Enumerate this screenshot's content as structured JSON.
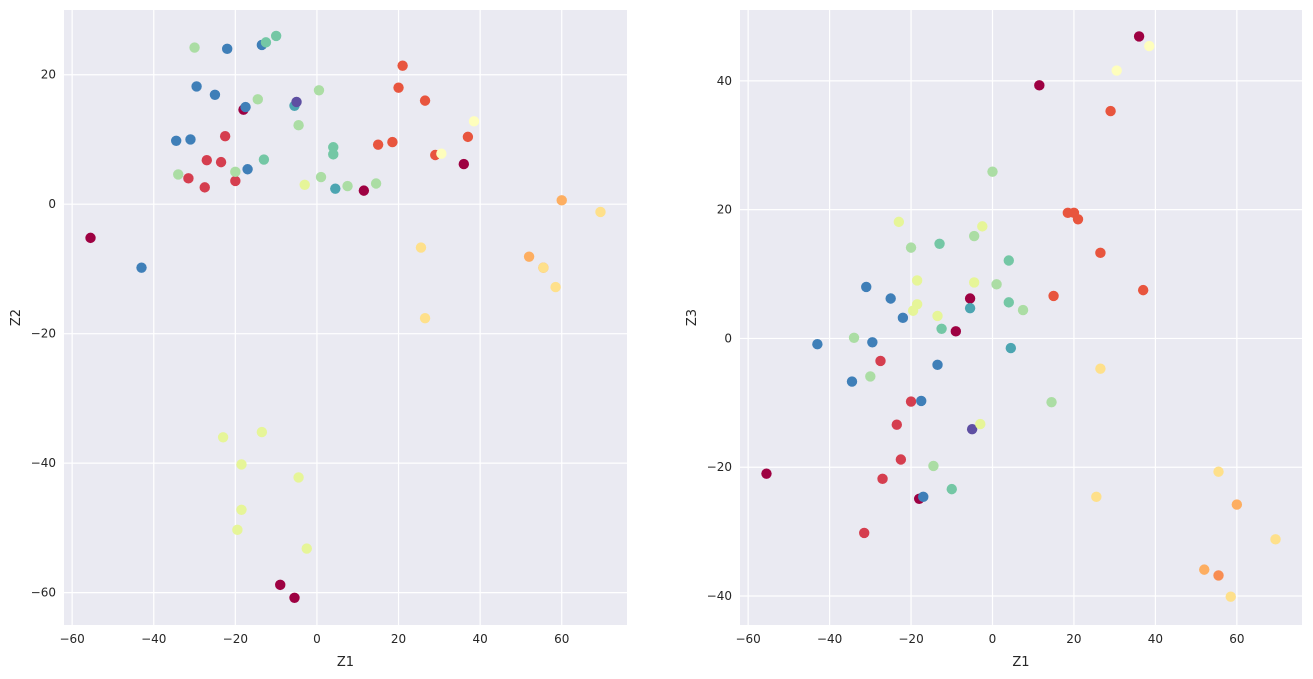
{
  "chart_data": [
    {
      "type": "scatter",
      "xlabel": "Z1",
      "ylabel": "Z2",
      "xlim": [
        -62,
        76
      ],
      "ylim": [
        -65,
        30
      ],
      "xticks": [
        -60,
        -40,
        -20,
        0,
        20,
        40,
        60
      ],
      "yticks": [
        -60,
        -40,
        -20,
        0,
        20
      ],
      "grid": true,
      "points": [
        {
          "x": -55.5,
          "y": -5.2,
          "color": "#9e0142"
        },
        {
          "x": -43.0,
          "y": -9.8,
          "color": "#3f7fb8"
        },
        {
          "x": -34.5,
          "y": 9.8,
          "color": "#3f7fb8"
        },
        {
          "x": -34.0,
          "y": 4.6,
          "color": "#abdda4"
        },
        {
          "x": -31.5,
          "y": 4.0,
          "color": "#d53e4f"
        },
        {
          "x": -31.0,
          "y": 10.0,
          "color": "#3f7fb8"
        },
        {
          "x": -30.0,
          "y": 24.2,
          "color": "#abdda4"
        },
        {
          "x": -29.5,
          "y": 18.2,
          "color": "#3f7fb8"
        },
        {
          "x": -27.5,
          "y": 2.6,
          "color": "#d53e4f"
        },
        {
          "x": -27.0,
          "y": 6.8,
          "color": "#d53e4f"
        },
        {
          "x": -25.0,
          "y": 16.9,
          "color": "#3f7fb8"
        },
        {
          "x": -23.5,
          "y": 6.5,
          "color": "#d53e4f"
        },
        {
          "x": -23.0,
          "y": -36.0,
          "color": "#e6f598"
        },
        {
          "x": -22.5,
          "y": 10.5,
          "color": "#d53e4f"
        },
        {
          "x": -22.0,
          "y": 24.0,
          "color": "#3f7fb8"
        },
        {
          "x": -20.0,
          "y": 3.6,
          "color": "#d53e4f"
        },
        {
          "x": -20.0,
          "y": 5.0,
          "color": "#abdda4"
        },
        {
          "x": -19.5,
          "y": -50.3,
          "color": "#e6f598"
        },
        {
          "x": -18.5,
          "y": -40.2,
          "color": "#e6f598"
        },
        {
          "x": -18.5,
          "y": -47.2,
          "color": "#e6f598"
        },
        {
          "x": -18.0,
          "y": 14.6,
          "color": "#9e0142"
        },
        {
          "x": -17.5,
          "y": 15.0,
          "color": "#3f7fb8"
        },
        {
          "x": -17.0,
          "y": 5.4,
          "color": "#3f7fb8"
        },
        {
          "x": -14.5,
          "y": 16.2,
          "color": "#abdda4"
        },
        {
          "x": -13.5,
          "y": 24.6,
          "color": "#3f7fb8"
        },
        {
          "x": -13.5,
          "y": -35.2,
          "color": "#e6f598"
        },
        {
          "x": -13.0,
          "y": 6.9,
          "color": "#74c7a5"
        },
        {
          "x": -12.5,
          "y": 25.0,
          "color": "#74c7a5"
        },
        {
          "x": -10.0,
          "y": 26.0,
          "color": "#74c7a5"
        },
        {
          "x": -9.0,
          "y": -58.8,
          "color": "#9e0142"
        },
        {
          "x": -5.5,
          "y": -60.8,
          "color": "#9e0142"
        },
        {
          "x": -5.5,
          "y": 15.2,
          "color": "#4ca5b1"
        },
        {
          "x": -5.0,
          "y": 15.8,
          "color": "#5e4fa2"
        },
        {
          "x": -4.5,
          "y": 12.2,
          "color": "#abdda4"
        },
        {
          "x": -4.5,
          "y": -42.2,
          "color": "#e6f598"
        },
        {
          "x": -3.0,
          "y": 3.0,
          "color": "#e6f598"
        },
        {
          "x": -2.5,
          "y": -53.2,
          "color": "#e6f598"
        },
        {
          "x": 0.5,
          "y": 17.6,
          "color": "#abdda4"
        },
        {
          "x": 1.0,
          "y": 4.2,
          "color": "#abdda4"
        },
        {
          "x": 4.0,
          "y": 8.8,
          "color": "#74c7a5"
        },
        {
          "x": 4.0,
          "y": 7.7,
          "color": "#74c7a5"
        },
        {
          "x": 4.5,
          "y": 2.4,
          "color": "#4ca5b1"
        },
        {
          "x": 7.5,
          "y": 2.8,
          "color": "#abdda4"
        },
        {
          "x": 11.5,
          "y": 2.1,
          "color": "#9e0142"
        },
        {
          "x": 14.5,
          "y": 3.2,
          "color": "#abdda4"
        },
        {
          "x": 15.0,
          "y": 9.2,
          "color": "#e8553e"
        },
        {
          "x": 18.5,
          "y": 9.6,
          "color": "#e8553e"
        },
        {
          "x": 20.0,
          "y": 18.0,
          "color": "#e8553e"
        },
        {
          "x": 21.0,
          "y": 21.4,
          "color": "#e8553e"
        },
        {
          "x": 25.5,
          "y": -6.7,
          "color": "#fee08b"
        },
        {
          "x": 26.5,
          "y": 16.0,
          "color": "#e8553e"
        },
        {
          "x": 26.5,
          "y": -17.6,
          "color": "#fee08b"
        },
        {
          "x": 29.0,
          "y": 7.6,
          "color": "#e8553e"
        },
        {
          "x": 30.5,
          "y": 7.8,
          "color": "#fefebd"
        },
        {
          "x": 36.0,
          "y": 6.2,
          "color": "#9e0142"
        },
        {
          "x": 37.0,
          "y": 10.4,
          "color": "#e8553e"
        },
        {
          "x": 38.5,
          "y": 12.8,
          "color": "#fefebd"
        },
        {
          "x": 52.0,
          "y": -8.1,
          "color": "#fdae61"
        },
        {
          "x": 55.5,
          "y": -9.8,
          "color": "#f88d52"
        },
        {
          "x": 55.5,
          "y": -9.8,
          "color": "#fee08b"
        },
        {
          "x": 58.5,
          "y": -12.8,
          "color": "#fee08b"
        },
        {
          "x": 60.0,
          "y": 0.6,
          "color": "#fdae61"
        },
        {
          "x": 69.5,
          "y": -1.2,
          "color": "#fee08b"
        }
      ]
    },
    {
      "type": "scatter",
      "xlabel": "Z1",
      "ylabel": "Z3",
      "xlim": [
        -62,
        76
      ],
      "ylim": [
        -44.5,
        51
      ],
      "xticks": [
        -60,
        -40,
        -20,
        0,
        20,
        40,
        60
      ],
      "yticks": [
        -40,
        -20,
        0,
        20,
        40
      ],
      "grid": true,
      "points": [
        {
          "x": -55.5,
          "y": -21.0,
          "color": "#9e0142"
        },
        {
          "x": -43.0,
          "y": -0.9,
          "color": "#3f7fb8"
        },
        {
          "x": -34.5,
          "y": -6.7,
          "color": "#3f7fb8"
        },
        {
          "x": -34.0,
          "y": 0.1,
          "color": "#abdda4"
        },
        {
          "x": -31.5,
          "y": -30.2,
          "color": "#d53e4f"
        },
        {
          "x": -31.0,
          "y": 8.0,
          "color": "#3f7fb8"
        },
        {
          "x": -30.0,
          "y": -5.9,
          "color": "#abdda4"
        },
        {
          "x": -29.5,
          "y": -0.6,
          "color": "#3f7fb8"
        },
        {
          "x": -27.5,
          "y": -3.5,
          "color": "#d53e4f"
        },
        {
          "x": -27.0,
          "y": -21.8,
          "color": "#d53e4f"
        },
        {
          "x": -25.0,
          "y": 6.2,
          "color": "#3f7fb8"
        },
        {
          "x": -23.5,
          "y": -13.4,
          "color": "#d53e4f"
        },
        {
          "x": -23.0,
          "y": 18.1,
          "color": "#e6f598"
        },
        {
          "x": -22.5,
          "y": -18.8,
          "color": "#d53e4f"
        },
        {
          "x": -22.0,
          "y": 3.2,
          "color": "#3f7fb8"
        },
        {
          "x": -20.0,
          "y": -9.8,
          "color": "#d53e4f"
        },
        {
          "x": -20.0,
          "y": 14.1,
          "color": "#abdda4"
        },
        {
          "x": -19.5,
          "y": 4.3,
          "color": "#e6f598"
        },
        {
          "x": -18.5,
          "y": 9.0,
          "color": "#e6f598"
        },
        {
          "x": -18.5,
          "y": 5.3,
          "color": "#e6f598"
        },
        {
          "x": -18.0,
          "y": -24.9,
          "color": "#9e0142"
        },
        {
          "x": -17.5,
          "y": -9.7,
          "color": "#3f7fb8"
        },
        {
          "x": -17.0,
          "y": -24.6,
          "color": "#3f7fb8"
        },
        {
          "x": -14.5,
          "y": -19.8,
          "color": "#abdda4"
        },
        {
          "x": -13.5,
          "y": -4.1,
          "color": "#3f7fb8"
        },
        {
          "x": -13.5,
          "y": 3.5,
          "color": "#e6f598"
        },
        {
          "x": -13.0,
          "y": 14.7,
          "color": "#74c7a5"
        },
        {
          "x": -12.5,
          "y": 1.5,
          "color": "#74c7a5"
        },
        {
          "x": -10.0,
          "y": -23.4,
          "color": "#74c7a5"
        },
        {
          "x": -9.0,
          "y": 1.1,
          "color": "#9e0142"
        },
        {
          "x": -5.5,
          "y": 6.2,
          "color": "#9e0142"
        },
        {
          "x": -5.5,
          "y": 4.7,
          "color": "#4ca5b1"
        },
        {
          "x": -5.0,
          "y": -14.1,
          "color": "#5e4fa2"
        },
        {
          "x": -4.5,
          "y": 15.9,
          "color": "#abdda4"
        },
        {
          "x": -4.5,
          "y": 8.7,
          "color": "#e6f598"
        },
        {
          "x": -3.0,
          "y": -13.3,
          "color": "#e6f598"
        },
        {
          "x": -2.5,
          "y": 17.4,
          "color": "#e6f598"
        },
        {
          "x": 0.0,
          "y": 25.9,
          "color": "#abdda4"
        },
        {
          "x": 1.0,
          "y": 8.4,
          "color": "#abdda4"
        },
        {
          "x": 4.0,
          "y": 12.1,
          "color": "#74c7a5"
        },
        {
          "x": 4.0,
          "y": 5.6,
          "color": "#74c7a5"
        },
        {
          "x": 4.5,
          "y": -1.5,
          "color": "#4ca5b1"
        },
        {
          "x": 7.5,
          "y": 4.4,
          "color": "#abdda4"
        },
        {
          "x": 11.5,
          "y": 39.3,
          "color": "#9e0142"
        },
        {
          "x": 14.5,
          "y": -9.9,
          "color": "#abdda4"
        },
        {
          "x": 15.0,
          "y": 6.6,
          "color": "#e8553e"
        },
        {
          "x": 18.5,
          "y": 19.5,
          "color": "#e8553e"
        },
        {
          "x": 20.0,
          "y": 19.5,
          "color": "#e8553e"
        },
        {
          "x": 21.0,
          "y": 18.5,
          "color": "#e8553e"
        },
        {
          "x": 25.5,
          "y": -24.6,
          "color": "#fee08b"
        },
        {
          "x": 26.5,
          "y": 13.3,
          "color": "#e8553e"
        },
        {
          "x": 26.5,
          "y": -4.7,
          "color": "#fee08b"
        },
        {
          "x": 29.0,
          "y": 35.3,
          "color": "#e8553e"
        },
        {
          "x": 30.5,
          "y": 41.6,
          "color": "#fefebd"
        },
        {
          "x": 36.0,
          "y": 46.9,
          "color": "#9e0142"
        },
        {
          "x": 37.0,
          "y": 7.5,
          "color": "#e8553e"
        },
        {
          "x": 38.5,
          "y": 45.4,
          "color": "#fefebd"
        },
        {
          "x": 52.0,
          "y": -35.9,
          "color": "#fdae61"
        },
        {
          "x": 55.5,
          "y": -36.8,
          "color": "#f88d52"
        },
        {
          "x": 55.5,
          "y": -20.7,
          "color": "#fee08b"
        },
        {
          "x": 58.5,
          "y": -40.1,
          "color": "#fee08b"
        },
        {
          "x": 60.0,
          "y": -25.8,
          "color": "#fdae61"
        },
        {
          "x": 69.5,
          "y": -31.2,
          "color": "#fee08b"
        }
      ]
    }
  ]
}
